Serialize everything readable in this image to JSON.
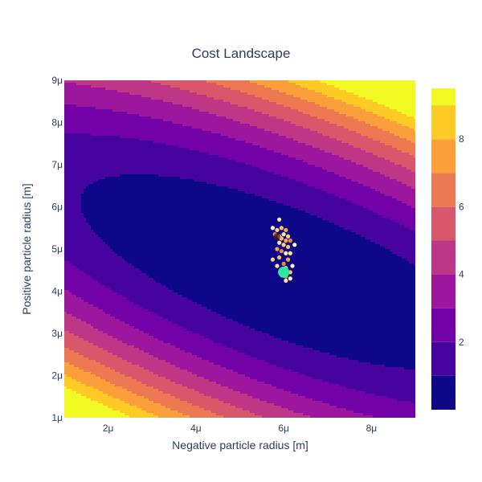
{
  "chart_data": {
    "type": "contour",
    "title": "Cost Landscape",
    "xlabel": "Negative particle radius [m]",
    "ylabel": "Positive particle radius [m]",
    "xlim": [
      1e-06,
      9e-06
    ],
    "ylim": [
      1e-06,
      9e-06
    ],
    "x_ticks": [
      {
        "value": 2e-06,
        "label": "2μ"
      },
      {
        "value": 4e-06,
        "label": "4μ"
      },
      {
        "value": 6e-06,
        "label": "6μ"
      },
      {
        "value": 8e-06,
        "label": "8μ"
      }
    ],
    "y_ticks": [
      {
        "value": 1e-06,
        "label": "1μ"
      },
      {
        "value": 2e-06,
        "label": "2μ"
      },
      {
        "value": 3e-06,
        "label": "3μ"
      },
      {
        "value": 4e-06,
        "label": "4μ"
      },
      {
        "value": 5e-06,
        "label": "5μ"
      },
      {
        "value": 6e-06,
        "label": "6μ"
      },
      {
        "value": 7e-06,
        "label": "7μ"
      },
      {
        "value": 8e-06,
        "label": "8μ"
      },
      {
        "value": 9e-06,
        "label": "9μ"
      }
    ],
    "colorbar": {
      "range": [
        0,
        9.5
      ],
      "ticks": [
        {
          "value": 2,
          "label": "2"
        },
        {
          "value": 4,
          "label": "4"
        },
        {
          "value": 6,
          "label": "6"
        },
        {
          "value": 8,
          "label": "8"
        }
      ],
      "levels": [
        0,
        1,
        2,
        3,
        4,
        5,
        6,
        7,
        8,
        9,
        9.5
      ],
      "colors": [
        "#0d0887",
        "#46039f",
        "#7201a8",
        "#9c179e",
        "#bd3786",
        "#d8576b",
        "#ed7953",
        "#fb9f3a",
        "#fdca26",
        "#f0f921"
      ]
    },
    "optimisation_points": [
      [
        5.75e-06,
        5.5e-06
      ],
      [
        5.9e-06,
        5.7e-06
      ],
      [
        5.85e-06,
        5.45e-06
      ],
      [
        5.95e-06,
        5.5e-06
      ],
      [
        6.05e-06,
        5.45e-06
      ],
      [
        5.8e-06,
        5.35e-06
      ],
      [
        5.9e-06,
        5.3e-06
      ],
      [
        6e-06,
        5.35e-06
      ],
      [
        6.1e-06,
        5.3e-06
      ],
      [
        5.95e-06,
        5.25e-06
      ],
      [
        6.05e-06,
        5.2e-06
      ],
      [
        6.15e-06,
        5.2e-06
      ],
      [
        6.25e-06,
        5.1e-06
      ],
      [
        5.9e-06,
        5.15e-06
      ],
      [
        6e-06,
        5.1e-06
      ],
      [
        6.1e-06,
        5.05e-06
      ],
      [
        5.85e-06,
        5e-06
      ],
      [
        5.95e-06,
        4.95e-06
      ],
      [
        6.05e-06,
        4.9e-06
      ],
      [
        6.15e-06,
        4.9e-06
      ],
      [
        5.75e-06,
        4.75e-06
      ],
      [
        5.9e-06,
        4.8e-06
      ],
      [
        6.1e-06,
        4.75e-06
      ],
      [
        6e-06,
        4.65e-06
      ],
      [
        6.2e-06,
        4.6e-06
      ],
      [
        5.85e-06,
        4.6e-06
      ],
      [
        6.05e-06,
        4.55e-06
      ],
      [
        6.15e-06,
        4.45e-06
      ],
      [
        5.95e-06,
        4.4e-06
      ],
      [
        6.05e-06,
        4.35e-06
      ],
      [
        6.15e-06,
        4.3e-06
      ],
      [
        6.05e-06,
        4.25e-06
      ]
    ],
    "optimisation_point_values": [
      6.5,
      5.0,
      7.2,
      7.5,
      7.0,
      7.8,
      7.9,
      7.4,
      7.1,
      7.3,
      6.8,
      7.2,
      6.0,
      6.6,
      6.3,
      6.1,
      5.6,
      5.3,
      5.0,
      4.8,
      4.6,
      4.4,
      4.0,
      3.5,
      3.2,
      3.8,
      3.0,
      2.5,
      2.0,
      1.5,
      1.2,
      1.0
    ],
    "start_point": [
      5.85e-06,
      5.3e-06
    ],
    "best_point": [
      6e-06,
      4.45e-06
    ],
    "best_point_color": "#2ee89f"
  }
}
